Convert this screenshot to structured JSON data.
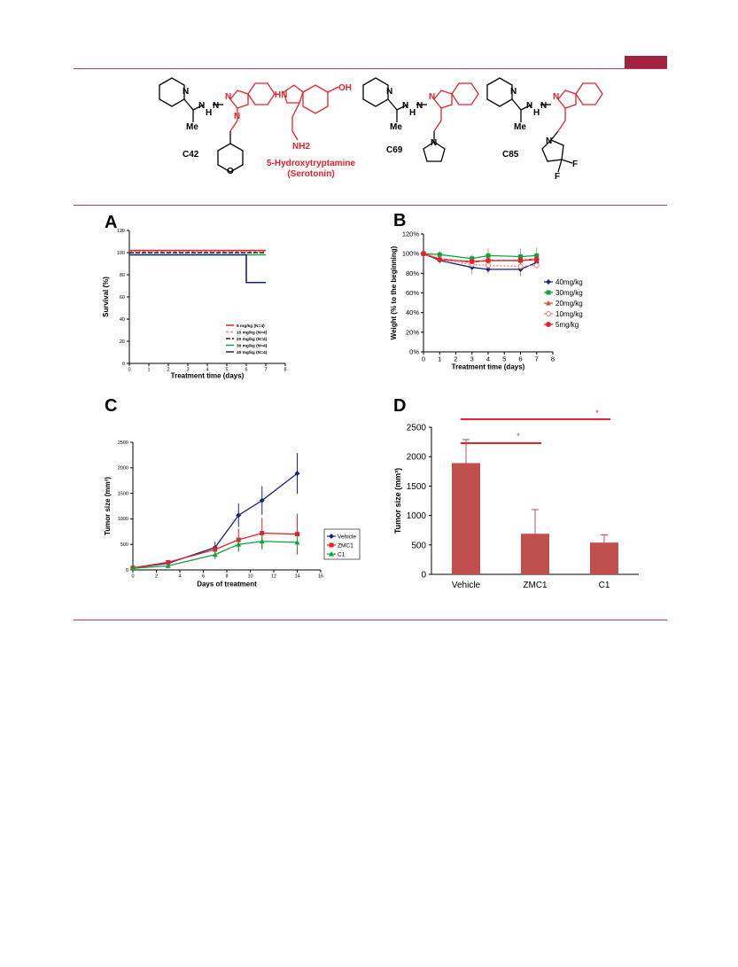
{
  "colors": {
    "rule": "#b23a52",
    "tab": "#a3213f",
    "red": "#e8202a",
    "navy": "#1a237e",
    "green": "#12a13a",
    "bar": "#c0504d"
  },
  "structures": {
    "c42": {
      "label": "C42",
      "atoms": [
        "N",
        "N",
        "H",
        "N",
        "N",
        "N",
        "Me",
        "O"
      ]
    },
    "serotonin": {
      "label": "5-Hydroxytryptamine",
      "sublabel": "(Serotonin)",
      "atoms": [
        "HN",
        "OH",
        "NH2"
      ]
    },
    "c69": {
      "label": "C69",
      "atoms": [
        "N",
        "N",
        "H",
        "N",
        "N",
        "N",
        "Me"
      ]
    },
    "c85": {
      "label": "C85",
      "atoms": [
        "N",
        "N",
        "H",
        "N",
        "N",
        "N",
        "Me",
        "F",
        "F"
      ]
    }
  },
  "panels": {
    "a": "A",
    "b": "B",
    "c": "C",
    "d": "D"
  },
  "chart_data": [
    {
      "id": "A",
      "type": "line",
      "xlabel": "Treatment time (days)",
      "ylabel": "Survival (%)",
      "xlim": [
        0,
        8
      ],
      "ylim": [
        0,
        120
      ],
      "xticks": [
        0,
        1,
        2,
        3,
        4,
        5,
        6,
        7,
        8
      ],
      "yticks": [
        0,
        20,
        40,
        60,
        80,
        100,
        120
      ],
      "legend": "bottom-right",
      "series": [
        {
          "name": "5 mg/kg (N=4)",
          "color": "#e8202a",
          "dash": "",
          "x": [
            0,
            7
          ],
          "y": [
            102,
            102
          ]
        },
        {
          "name": "10 mg/kg (N=4)",
          "color": "#f08080",
          "dash": "3,2",
          "x": [
            0,
            7
          ],
          "y": [
            101,
            101
          ]
        },
        {
          "name": "20 mg/kg (N=4)",
          "color": "#222222",
          "dash": "5,2",
          "x": [
            0,
            7
          ],
          "y": [
            100,
            100
          ]
        },
        {
          "name": "30 mg/kg (N=4)",
          "color": "#12a13a",
          "dash": "",
          "x": [
            0,
            7
          ],
          "y": [
            98,
            98
          ]
        },
        {
          "name": "40 mg/kg (N=4)",
          "color": "#1a237e",
          "dash": "",
          "x": [
            0,
            6,
            6,
            7
          ],
          "y": [
            98,
            98,
            73,
            73
          ]
        }
      ]
    },
    {
      "id": "B",
      "type": "line",
      "xlabel": "Treatment time (days)",
      "ylabel": "Weight (% to the beginning)",
      "xlim": [
        0,
        8
      ],
      "ylim": [
        0,
        120
      ],
      "xticks": [
        0,
        1,
        2,
        3,
        4,
        5,
        6,
        7,
        8
      ],
      "yticks": [
        "0%",
        "20%",
        "40%",
        "60%",
        "80%",
        "100%",
        "120%"
      ],
      "legend": "right",
      "x": [
        0,
        1,
        3,
        4,
        6,
        7
      ],
      "series": [
        {
          "name": "40mg/kg",
          "color": "#1a237e",
          "dash": "",
          "marker": "diamond",
          "y": [
            100,
            93,
            86,
            84,
            84,
            91
          ],
          "err": [
            0,
            0,
            7,
            4,
            7,
            6
          ]
        },
        {
          "name": "30mg/kg",
          "color": "#12a13a",
          "dash": "",
          "marker": "square",
          "y": [
            100,
            99,
            95,
            98,
            97,
            98
          ],
          "err": [
            0,
            4,
            4,
            7,
            8,
            8
          ]
        },
        {
          "name": "20mg/kg",
          "color": "#d2553f",
          "dash": "4,2",
          "marker": "triangle",
          "y": [
            100,
            95,
            91,
            93,
            93,
            95
          ],
          "err": [
            0,
            0,
            0,
            0,
            0,
            0
          ]
        },
        {
          "name": "10mg/kg",
          "color": "#f07f6f",
          "dash": "2,2",
          "marker": "circle-open",
          "y": [
            100,
            94,
            89,
            88,
            87,
            88
          ],
          "err": [
            0,
            0,
            0,
            0,
            0,
            0
          ]
        },
        {
          "name": "5mg/kg",
          "color": "#e8202a",
          "dash": "",
          "marker": "circle",
          "y": [
            100,
            94,
            92,
            93,
            93,
            94
          ],
          "err": [
            0,
            0,
            0,
            0,
            0,
            0
          ]
        }
      ]
    },
    {
      "id": "C",
      "type": "line",
      "xlabel": "Days of treatment",
      "ylabel": "Tumor size (mm³)",
      "xlim": [
        0,
        16
      ],
      "ylim": [
        0,
        2500
      ],
      "xticks": [
        0,
        2,
        4,
        6,
        8,
        10,
        12,
        14,
        16
      ],
      "yticks": [
        0,
        500,
        1000,
        1500,
        2000,
        2500
      ],
      "legend": "right",
      "x": [
        0,
        3,
        7,
        9,
        11,
        14
      ],
      "series": [
        {
          "name": "Vehicle",
          "color": "#1a237e",
          "marker": "diamond",
          "y": [
            40,
            130,
            440,
            1070,
            1360,
            1890
          ],
          "err": [
            0,
            30,
            110,
            230,
            280,
            400
          ]
        },
        {
          "name": "ZMC1",
          "color": "#e8202a",
          "marker": "square",
          "y": [
            40,
            150,
            400,
            590,
            720,
            700
          ],
          "err": [
            0,
            40,
            100,
            220,
            300,
            400
          ]
        },
        {
          "name": "C1",
          "color": "#12a13a",
          "marker": "triangle",
          "y": [
            30,
            80,
            300,
            500,
            560,
            540
          ],
          "err": [
            0,
            20,
            90,
            140,
            160,
            150
          ]
        }
      ]
    },
    {
      "id": "D",
      "type": "bar",
      "ylabel": "Tumor size (mm³)",
      "ylim": [
        0,
        2500
      ],
      "yticks": [
        0,
        500,
        1000,
        1500,
        2000,
        2500
      ],
      "categories": [
        "Vehicle",
        "ZMC1",
        "C1"
      ],
      "values": [
        1890,
        690,
        540
      ],
      "err": [
        400,
        410,
        130
      ],
      "annotations": [
        "*",
        "*"
      ]
    }
  ]
}
